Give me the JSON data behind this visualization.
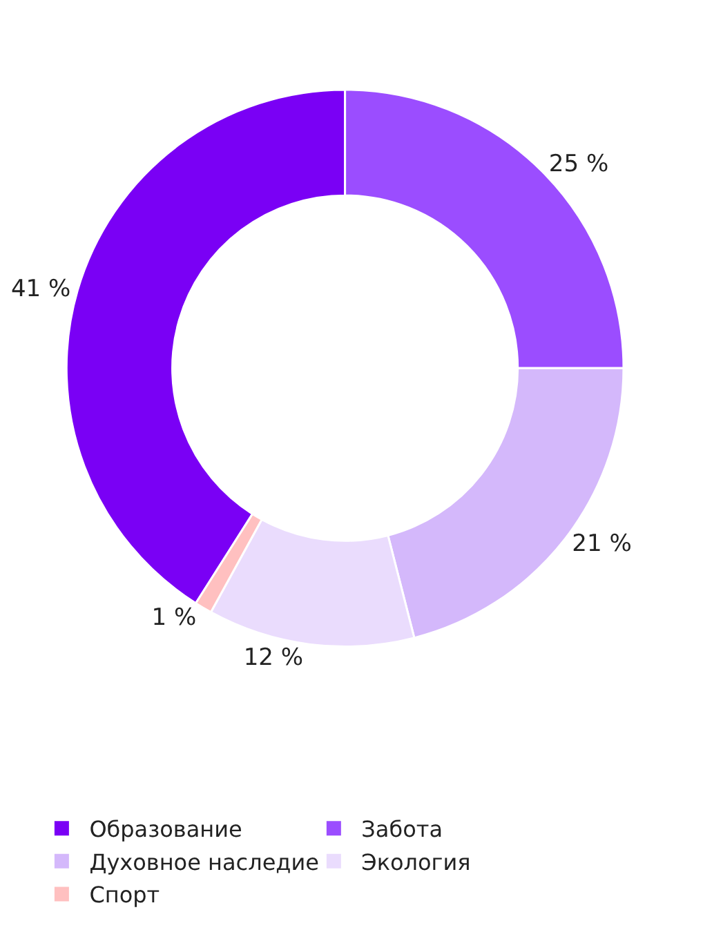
{
  "chart_data": {
    "type": "donut",
    "categories": [
      "Образование",
      "Забота",
      "Духовное наследие",
      "Экология",
      "Спорт"
    ],
    "values": [
      41,
      25,
      21,
      12,
      1
    ],
    "colors": [
      "#7a00f5",
      "#9b4dff",
      "#d4b8fb",
      "#eadcfd",
      "#ffc0c0"
    ],
    "value_labels": [
      "41 %",
      "25 %",
      "21 %",
      "12 %",
      "1 %"
    ],
    "legend": "bottom"
  }
}
